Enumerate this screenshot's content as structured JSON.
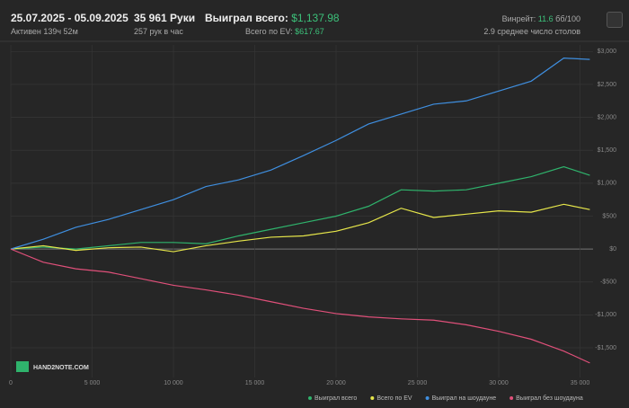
{
  "header": {
    "date_range": "25.07.2025 - 05.09.2025",
    "active": "Активен 139ч 52м",
    "hands": "35 961 Руки",
    "hands_per_hour": "257 рук в час",
    "won_label": "Выиграл всего:",
    "won_value": "$1,137.98",
    "ev_label": "Всего по EV:",
    "ev_value": "$617.67",
    "winrate_label": "Винрейт:",
    "winrate_value": "11.6",
    "winrate_unit": "бб/100",
    "tables": "2.9 среднее число столов"
  },
  "logo": "HAND2NOTE.COM",
  "chart_data": {
    "type": "line",
    "x": [
      0,
      2000,
      4000,
      6000,
      8000,
      10000,
      12000,
      14000,
      16000,
      18000,
      20000,
      22000,
      24000,
      26000,
      28000,
      30000,
      32000,
      34000,
      35600
    ],
    "series": [
      {
        "name": "Выиграл всего",
        "color": "#2fb36c",
        "values": [
          0,
          30,
          0,
          50,
          100,
          100,
          80,
          200,
          300,
          400,
          500,
          650,
          900,
          880,
          900,
          1000,
          1100,
          1250,
          1120
        ]
      },
      {
        "name": "Всего по EV",
        "color": "#e6e64a",
        "values": [
          0,
          50,
          -20,
          20,
          30,
          -40,
          50,
          120,
          180,
          200,
          270,
          400,
          620,
          480,
          530,
          580,
          560,
          680,
          600
        ]
      },
      {
        "name": "Выиграл на шоудауне",
        "color": "#3f8fe0",
        "values": [
          0,
          150,
          330,
          450,
          600,
          750,
          950,
          1050,
          1200,
          1420,
          1650,
          1900,
          2050,
          2200,
          2250,
          2400,
          2550,
          2900,
          2880
        ]
      },
      {
        "name": "Выиграл без шоудауна",
        "color": "#e0507a",
        "values": [
          0,
          -200,
          -300,
          -350,
          -450,
          -550,
          -620,
          -700,
          -800,
          -900,
          -980,
          -1030,
          -1060,
          -1080,
          -1150,
          -1250,
          -1370,
          -1550,
          -1730
        ]
      }
    ],
    "xlim": [
      0,
      35800
    ],
    "ylim": [
      -1950,
      3100
    ],
    "xticks": [
      0,
      {
        "value": 5000,
        "label": "5 000"
      },
      {
        "value": 10000,
        "label": "10 000"
      },
      {
        "value": 15000,
        "label": "15 000"
      },
      {
        "value": 20000,
        "label": "20 000"
      },
      {
        "value": 25000,
        "label": "25 000"
      },
      {
        "value": 30000,
        "label": "30 000"
      },
      {
        "value": 35000,
        "label": "35 000"
      }
    ],
    "yticks": [
      {
        "value": -1500,
        "label": "-$1,500"
      },
      {
        "value": -1000,
        "label": "-$1,000"
      },
      {
        "value": -500,
        "label": "-$500"
      },
      {
        "value": 0,
        "label": "$0"
      },
      {
        "value": 500,
        "label": "$500"
      },
      {
        "value": 1000,
        "label": "$1,000"
      },
      {
        "value": 1500,
        "label": "$1,500"
      },
      {
        "value": 2000,
        "label": "$2,000"
      },
      {
        "value": 2500,
        "label": "$2,500"
      },
      {
        "value": 3000,
        "label": "$3,000"
      }
    ],
    "grid": true
  }
}
